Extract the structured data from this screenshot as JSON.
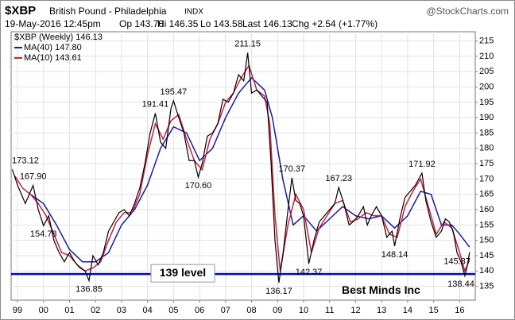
{
  "chart_data": {
    "type": "line",
    "title": "$XBP",
    "subtitle": "British Pound - Philadelphia",
    "exchange": "INDX",
    "source": "@StockCharts.com",
    "date": "19-May-2016 12:45pm",
    "quote": [
      "Op 143.70",
      "Hi 146.35",
      "Lo 143.58",
      "Last 146.13",
      "Chg +2.54 (+1.77%)"
    ],
    "watermark": "Best Minds Inc",
    "level": {
      "value": 139,
      "label": "139 level",
      "color": "#0000dd"
    },
    "xlim": [
      1998.755,
      2016.6
    ],
    "xticks": [
      {
        "value": 1999,
        "label": "99"
      },
      {
        "value": 2000,
        "label": "00"
      },
      {
        "value": 2001,
        "label": "01"
      },
      {
        "value": 2002,
        "label": "02"
      },
      {
        "value": 2003,
        "label": "03"
      },
      {
        "value": 2004,
        "label": "04"
      },
      {
        "value": 2005,
        "label": "05"
      },
      {
        "value": 2006,
        "label": "06"
      },
      {
        "value": 2007,
        "label": "07"
      },
      {
        "value": 2008,
        "label": "08"
      },
      {
        "value": 2009,
        "label": "09"
      },
      {
        "value": 2010,
        "label": "10"
      },
      {
        "value": 2011,
        "label": "11"
      },
      {
        "value": 2012,
        "label": "12"
      },
      {
        "value": 2013,
        "label": "13"
      },
      {
        "value": 2014,
        "label": "14"
      },
      {
        "value": 2015,
        "label": "15"
      },
      {
        "value": 2016,
        "label": "16"
      }
    ],
    "ylim": [
      130.5,
      218
    ],
    "yticks": [
      135,
      140,
      145,
      150,
      155,
      160,
      165,
      170,
      175,
      180,
      185,
      190,
      195,
      200,
      205,
      210,
      215
    ],
    "grid": true,
    "series": [
      {
        "name": "$XBP (Weekly) 146.13",
        "color": "#000000",
        "x": [
          1998.8,
          1999.0,
          1999.3,
          1999.6,
          1999.8,
          2000.0,
          2000.2,
          2000.4,
          2000.6,
          2000.8,
          2001.0,
          2001.2,
          2001.4,
          2001.6,
          2001.75,
          2001.9,
          2002.1,
          2002.3,
          2002.5,
          2002.7,
          2002.9,
          2003.1,
          2003.3,
          2003.5,
          2003.7,
          2003.9,
          2004.1,
          2004.3,
          2004.5,
          2004.7,
          2004.9,
          2005.0,
          2005.2,
          2005.4,
          2005.6,
          2005.8,
          2005.95,
          2006.1,
          2006.3,
          2006.5,
          2006.7,
          2006.9,
          2007.1,
          2007.3,
          2007.5,
          2007.7,
          2007.85,
          2008.0,
          2008.2,
          2008.4,
          2008.6,
          2008.75,
          2008.9,
          2009.05,
          2009.2,
          2009.4,
          2009.55,
          2009.7,
          2009.85,
          2010.0,
          2010.2,
          2010.4,
          2010.6,
          2010.8,
          2011.0,
          2011.2,
          2011.35,
          2011.55,
          2011.75,
          2011.9,
          2012.1,
          2012.3,
          2012.45,
          2012.6,
          2012.8,
          2013.0,
          2013.2,
          2013.4,
          2013.5,
          2013.7,
          2013.9,
          2014.1,
          2014.3,
          2014.55,
          2014.7,
          2014.9,
          2015.1,
          2015.3,
          2015.45,
          2015.6,
          2015.75,
          2015.9,
          2016.05,
          2016.2,
          2016.3,
          2016.38
        ],
        "values": [
          173.12,
          168,
          162,
          167.9,
          160,
          154.78,
          158,
          150,
          146,
          143,
          146,
          143,
          141,
          140,
          136.85,
          145,
          142,
          146,
          153,
          156,
          159,
          160,
          158,
          162,
          167,
          175,
          185,
          191.41,
          182,
          180,
          193,
          195.47,
          190,
          185,
          176,
          176,
          170.6,
          175,
          184,
          185,
          188,
          196,
          195,
          198,
          204,
          202,
          211.15,
          198,
          199,
          197,
          195,
          175,
          150,
          136.17,
          145,
          160,
          170.37,
          163,
          162,
          158,
          142.37,
          150,
          156,
          158,
          160,
          162,
          167.23,
          162,
          155,
          156,
          158,
          161,
          155,
          158,
          161,
          158,
          151,
          153,
          148.14,
          157,
          164,
          166,
          168,
          171.92,
          163,
          156,
          151,
          153,
          157,
          156,
          153,
          145.87,
          143,
          138.44,
          142,
          146.13
        ]
      },
      {
        "name": "MA(40) 147.80",
        "color": "#1a1aa6",
        "x": [
          1999.5,
          2000.0,
          2000.5,
          2001.0,
          2001.5,
          2002.0,
          2002.5,
          2003.0,
          2003.5,
          2004.0,
          2004.5,
          2005.0,
          2005.5,
          2006.0,
          2006.5,
          2007.0,
          2007.5,
          2008.0,
          2008.5,
          2008.8,
          2009.2,
          2009.6,
          2010.0,
          2010.5,
          2011.0,
          2011.5,
          2012.0,
          2012.5,
          2013.0,
          2013.5,
          2014.0,
          2014.5,
          2014.9,
          2015.3,
          2015.7,
          2016.0,
          2016.38
        ],
        "values": [
          165,
          162,
          155,
          147,
          143,
          143,
          146,
          155,
          160,
          168,
          180,
          187,
          185,
          176,
          180,
          190,
          198,
          203,
          199,
          190,
          170,
          155,
          158,
          153,
          157,
          161,
          158,
          157,
          158,
          154,
          158,
          166,
          165,
          155,
          155,
          152,
          147.8
        ]
      },
      {
        "name": "MA(10) 143.61",
        "color": "#cc1f3a",
        "x": [
          1998.9,
          1999.2,
          1999.5,
          1999.8,
          2000.1,
          2000.4,
          2000.7,
          2001.0,
          2001.3,
          2001.6,
          2001.9,
          2002.2,
          2002.5,
          2002.8,
          2003.1,
          2003.4,
          2003.7,
          2004.0,
          2004.3,
          2004.6,
          2004.9,
          2005.2,
          2005.5,
          2005.8,
          2006.1,
          2006.4,
          2006.7,
          2007.0,
          2007.3,
          2007.6,
          2007.9,
          2008.2,
          2008.5,
          2008.7,
          2008.9,
          2009.1,
          2009.4,
          2009.7,
          2010.0,
          2010.3,
          2010.6,
          2010.9,
          2011.2,
          2011.5,
          2011.8,
          2012.1,
          2012.4,
          2012.7,
          2013.0,
          2013.3,
          2013.6,
          2013.9,
          2014.2,
          2014.5,
          2014.8,
          2015.1,
          2015.4,
          2015.7,
          2016.0,
          2016.2,
          2016.38
        ],
        "values": [
          171,
          167,
          165,
          162,
          158,
          152,
          146,
          145,
          142,
          140,
          141,
          143,
          150,
          156,
          159,
          159,
          165,
          178,
          188,
          183,
          189,
          191,
          183,
          176,
          173,
          183,
          188,
          195,
          198,
          203,
          207,
          199,
          197,
          188,
          158,
          140,
          155,
          165,
          160,
          146,
          154,
          158,
          162,
          163,
          156,
          157,
          159,
          158,
          158,
          152,
          151,
          161,
          166,
          170,
          161,
          152,
          156,
          154,
          146,
          140,
          143.61
        ]
      }
    ],
    "annotations": {
      "x": [
        1998.8,
        1999.6,
        2000.0,
        2001.75,
        2004.3,
        2005.0,
        2005.95,
        2007.85,
        2009.05,
        2009.55,
        2010.2,
        2011.35,
        2013.5,
        2014.55,
        2015.9,
        2016.2
      ],
      "values": [
        173.12,
        167.9,
        154.78,
        136.85,
        191.41,
        195.47,
        170.6,
        211.15,
        136.17,
        170.37,
        142.37,
        167.23,
        148.14,
        171.92,
        145.87,
        138.44
      ],
      "value_labels": [
        "173.12",
        "167.90",
        "154.78",
        "136.85",
        "191.41",
        "195.47",
        "170.60",
        "211.15",
        "136.17",
        "170.37",
        "142.37",
        "167.23",
        "148.14",
        "171.92",
        "145.87",
        "138.44"
      ]
    }
  }
}
